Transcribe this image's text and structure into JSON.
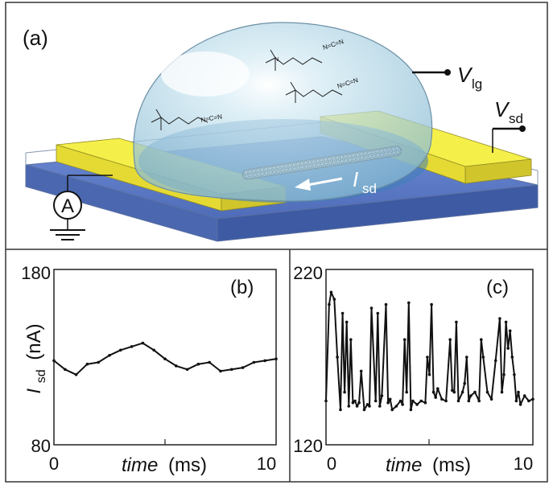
{
  "panel_a": {
    "label": "(a)",
    "v_lg": {
      "main": "V",
      "sub": "lg"
    },
    "v_sd": {
      "main": "V",
      "sub": "sd"
    },
    "i_sd": {
      "main": "I",
      "sub": "sd"
    },
    "ammeter": "A",
    "molecule_text": "N=C=N"
  },
  "colors": {
    "substrate_top": "#5f7bc6",
    "substrate_side": "#3f5fa8",
    "gold_top": "#f3ee45",
    "gold_side": "#d4c82a",
    "droplet": "#a9d3e6",
    "frame": "#333333"
  },
  "chart_data": [
    {
      "type": "line",
      "panel": "(b)",
      "ylabel": {
        "main": "I",
        "sub": "sd",
        "unit": "(nA)"
      },
      "xlabel": {
        "main": "time",
        "unit": "(ms)"
      },
      "xlim": [
        0,
        10
      ],
      "ylim": [
        80,
        180
      ],
      "xticks": [
        "0",
        "10"
      ],
      "yticks": [
        "80",
        "180"
      ],
      "series": [
        {
          "x": [
            0,
            0.5,
            1,
            1.5,
            2,
            2.5,
            3,
            3.5,
            4,
            4.5,
            5,
            5.5,
            6,
            6.5,
            7,
            7.5,
            8,
            8.5,
            9,
            9.5,
            10
          ],
          "y": [
            128,
            123,
            120,
            126,
            127,
            131,
            134,
            136,
            138,
            134,
            129,
            125,
            123,
            126,
            127,
            122,
            123,
            124,
            127,
            128,
            129
          ]
        }
      ]
    },
    {
      "type": "line",
      "panel": "(c)",
      "xlabel": {
        "main": "time",
        "unit": "(ms)"
      },
      "xlim": [
        0,
        10
      ],
      "ylim": [
        120,
        220
      ],
      "xticks": [
        "0",
        "10"
      ],
      "yticks": [
        "120",
        "220"
      ],
      "series": [
        {
          "x": [
            0,
            0.15,
            0.25,
            0.4,
            0.55,
            0.7,
            0.8,
            0.9,
            1.0,
            1.1,
            1.2,
            1.3,
            1.4,
            1.5,
            1.6,
            1.7,
            1.85,
            2.0,
            2.1,
            2.2,
            2.4,
            2.5,
            2.6,
            2.7,
            2.9,
            3.0,
            3.1,
            3.2,
            3.4,
            3.6,
            3.7,
            3.8,
            3.9,
            4.0,
            4.1,
            4.2,
            4.4,
            4.6,
            4.8,
            4.9,
            5.0,
            5.1,
            5.2,
            5.3,
            5.4,
            5.6,
            5.8,
            6.0,
            6.1,
            6.2,
            6.3,
            6.4,
            6.6,
            6.7,
            6.8,
            6.9,
            7.0,
            7.2,
            7.4,
            7.5,
            7.6,
            7.8,
            8.0,
            8.2,
            8.4,
            8.5,
            8.6,
            8.7,
            8.8,
            8.9,
            9.0,
            9.1,
            9.2,
            9.3,
            9.4,
            9.6,
            9.8,
            10.0
          ],
          "y": [
            145,
            200,
            207,
            203,
            170,
            140,
            195,
            150,
            190,
            142,
            180,
            144,
            145,
            142,
            144,
            162,
            140,
            143,
            142,
            198,
            145,
            195,
            142,
            148,
            200,
            144,
            146,
            140,
            142,
            145,
            143,
            180,
            150,
            201,
            140,
            145,
            143,
            145,
            144,
            170,
            160,
            200,
            150,
            147,
            152,
            146,
            145,
            180,
            151,
            150,
            190,
            145,
            150,
            155,
            170,
            145,
            148,
            150,
            145,
            180,
            170,
            150,
            146,
            168,
            192,
            150,
            160,
            190,
            175,
            185,
            170,
            160,
            145,
            150,
            143,
            148,
            145,
            146
          ]
        }
      ]
    }
  ]
}
